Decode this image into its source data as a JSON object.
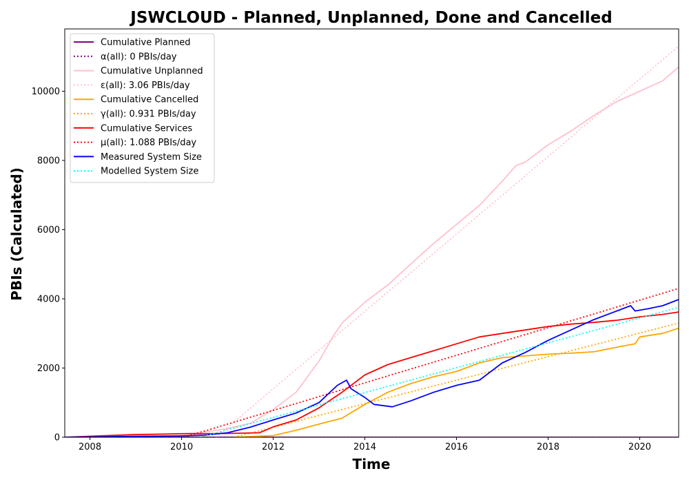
{
  "chart_data": {
    "type": "line",
    "title": "JSWCLOUD - Planned, Unplanned, Done  and Cancelled",
    "xlabel": "Time",
    "ylabel": "PBIs (Calculated)",
    "xlim": [
      2007.45,
      2020.85
    ],
    "ylim": [
      0,
      11800
    ],
    "xticks": [
      2008,
      2010,
      2012,
      2014,
      2016,
      2018,
      2020
    ],
    "yticks": [
      0,
      2000,
      4000,
      6000,
      8000,
      10000
    ],
    "grid": false,
    "legend_position": "top-left",
    "series": [
      {
        "name": "Cumulative Planned",
        "color": "#800080",
        "style": "solid",
        "x": [
          2007.45,
          2020.85
        ],
        "y": [
          0,
          0
        ]
      },
      {
        "name": "α(all): 0 PBIs/day",
        "color": "#800080",
        "style": "dotted",
        "x": [
          2007.45,
          2020.85
        ],
        "y": [
          0,
          0
        ]
      },
      {
        "name": "Cumulative Unplanned",
        "color": "#ffc0cb",
        "style": "solid",
        "x": [
          2007.45,
          2008,
          2009,
          2010,
          2010.5,
          2011,
          2011.5,
          2012,
          2012.5,
          2013,
          2013.3,
          2013.5,
          2014,
          2014.5,
          2015,
          2015.5,
          2016,
          2016.5,
          2017,
          2017.3,
          2017.5,
          2018,
          2018.5,
          2019,
          2019.5,
          2020,
          2020.5,
          2020.85
        ],
        "y": [
          0,
          20,
          60,
          110,
          150,
          250,
          400,
          800,
          1300,
          2200,
          2900,
          3300,
          3900,
          4400,
          5000,
          5600,
          6150,
          6700,
          7400,
          7850,
          7950,
          8450,
          8850,
          9300,
          9700,
          10000,
          10300,
          10700
        ]
      },
      {
        "name": "ε(all): 3.06 PBIs/day",
        "color": "#ffc0cb",
        "style": "dotted",
        "x": [
          2010.75,
          2020.85
        ],
        "y": [
          0,
          11300
        ]
      },
      {
        "name": "Cumulative Cancelled",
        "color": "#ffa500",
        "style": "solid",
        "x": [
          2011.2,
          2012,
          2012.5,
          2013,
          2013.5,
          2014,
          2014.5,
          2015,
          2015.5,
          2016,
          2016.5,
          2017,
          2017.5,
          2018,
          2018.5,
          2019,
          2019.5,
          2019.9,
          2020,
          2020.5,
          2020.85
        ],
        "y": [
          0,
          50,
          200,
          380,
          550,
          950,
          1300,
          1550,
          1750,
          1900,
          2150,
          2300,
          2350,
          2400,
          2430,
          2470,
          2600,
          2700,
          2900,
          3000,
          3150
        ]
      },
      {
        "name": "γ(all): 0.931 PBIs/day",
        "color": "#ffa500",
        "style": "dotted",
        "x": [
          2011.15,
          2020.85
        ],
        "y": [
          0,
          3300
        ]
      },
      {
        "name": "Cumulative Services",
        "color": "#ff0000",
        "style": "solid",
        "x": [
          2007.45,
          2008,
          2009,
          2010,
          2011,
          2011.7,
          2012,
          2012.5,
          2013,
          2013.5,
          2014,
          2014.5,
          2015,
          2015.5,
          2016,
          2016.5,
          2017,
          2017.5,
          2018,
          2018.5,
          2019,
          2019.5,
          2020,
          2020.5,
          2020.85
        ],
        "y": [
          0,
          30,
          80,
          100,
          110,
          130,
          300,
          500,
          850,
          1300,
          1800,
          2100,
          2300,
          2500,
          2700,
          2900,
          3000,
          3100,
          3200,
          3270,
          3320,
          3380,
          3480,
          3550,
          3620
        ]
      },
      {
        "name": "μ(all): 1.088 PBIs/day",
        "color": "#ff0000",
        "style": "dotted",
        "x": [
          2010.05,
          2020.85
        ],
        "y": [
          0,
          4300
        ]
      },
      {
        "name": "Measured System Size",
        "color": "#0000ff",
        "style": "solid",
        "x": [
          2007.45,
          2008,
          2009,
          2010,
          2010.5,
          2011,
          2011.5,
          2012,
          2012.5,
          2013,
          2013.4,
          2013.6,
          2013.7,
          2014,
          2014.2,
          2014.6,
          2015,
          2015.5,
          2016,
          2016.5,
          2017,
          2017.5,
          2018,
          2018.5,
          2019,
          2019.5,
          2019.8,
          2019.9,
          2020.2,
          2020.5,
          2020.85
        ],
        "y": [
          0,
          10,
          25,
          40,
          60,
          130,
          290,
          500,
          700,
          1000,
          1500,
          1650,
          1400,
          1150,
          950,
          880,
          1050,
          1300,
          1500,
          1650,
          2150,
          2450,
          2800,
          3100,
          3400,
          3650,
          3800,
          3650,
          3720,
          3800,
          3980
        ]
      },
      {
        "name": "Modelled System Size",
        "color": "#00ffff",
        "style": "dotted",
        "x": [
          2010.4,
          2020.85
        ],
        "y": [
          0,
          3750
        ]
      }
    ]
  }
}
